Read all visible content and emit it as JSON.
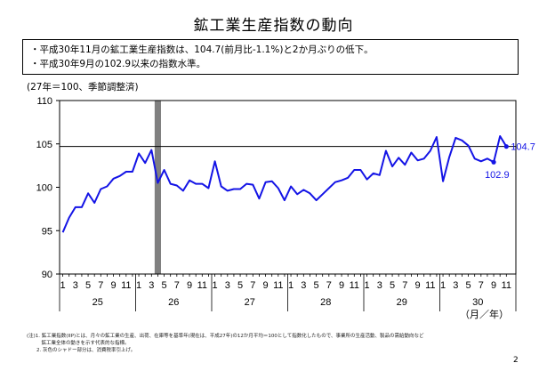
{
  "page": {
    "title": "鉱工業生産指数の動向",
    "summary": [
      "・平成30年11月の鉱工業生産指数は、104.7(前月比-1.1%)と2か月ぶりの低下。",
      "・平成30年9月の102.9以来の指数水準。"
    ],
    "unit_note": "(27年＝100、季節調整済)",
    "notes": [
      "(注)1. 鉱工業指数(IIP)とは、月々の鉱工業の生産、出荷、在庫等を基準年(現在は、平成27年)の12か月平均＝100として指数化したもので、事業所の生産活動、製品の需給動向など",
      "　　　鉱工業全体の動きを示す代表的な指標。",
      "　　2. 灰色のシャドー部分は、消費税率引上げ。"
    ],
    "page_number": "2",
    "axis_unit_label": "（月／年）"
  },
  "chart_data": {
    "type": "line",
    "title": "",
    "ylabel": "(27年＝100、季節調整済)",
    "ylim": [
      90,
      110
    ],
    "y_ticks": [
      90,
      95,
      100,
      105,
      110
    ],
    "month_tick_labels": [
      "1",
      "3",
      "5",
      "7",
      "9",
      "11"
    ],
    "year_labels": [
      "25",
      "26",
      "27",
      "28",
      "29",
      "30"
    ],
    "x_unit_label": "（月／年）",
    "reference_line": 104.7,
    "shade_period": {
      "year": "26",
      "month": 4,
      "label": "消費税率引上げ"
    },
    "annotations": [
      {
        "year": "30",
        "month": 9,
        "value": 102.9,
        "label": "102.9",
        "marker": true
      },
      {
        "year": "30",
        "month": 11,
        "value": 104.7,
        "label": "104.7",
        "marker": true
      }
    ],
    "colors": {
      "line": "#1414e6",
      "shade": "#808080",
      "reference": "#000000"
    },
    "series": [
      {
        "values": [
          94.8,
          96.5,
          97.7,
          97.7,
          99.3,
          98.2,
          99.8,
          100.1,
          101.0,
          101.3,
          101.8,
          101.8,
          103.9,
          102.8,
          104.3,
          100.5,
          102.0,
          100.4,
          100.2,
          99.6,
          100.8,
          100.4,
          100.4,
          99.9,
          103.0,
          100.1,
          99.6,
          99.8,
          99.8,
          100.4,
          100.3,
          98.7,
          100.6,
          100.7,
          99.9,
          98.5,
          100.1,
          99.2,
          99.7,
          99.3,
          98.5,
          99.2,
          99.9,
          100.6,
          100.8,
          101.1,
          102.0,
          102.0,
          100.9,
          101.6,
          101.4,
          104.2,
          102.4,
          103.4,
          102.6,
          104.0,
          103.1,
          103.3,
          104.2,
          105.8,
          100.7,
          103.5,
          105.7,
          105.4,
          104.8,
          103.3,
          103.0,
          103.3,
          102.9,
          105.9,
          104.7
        ]
      }
    ]
  }
}
